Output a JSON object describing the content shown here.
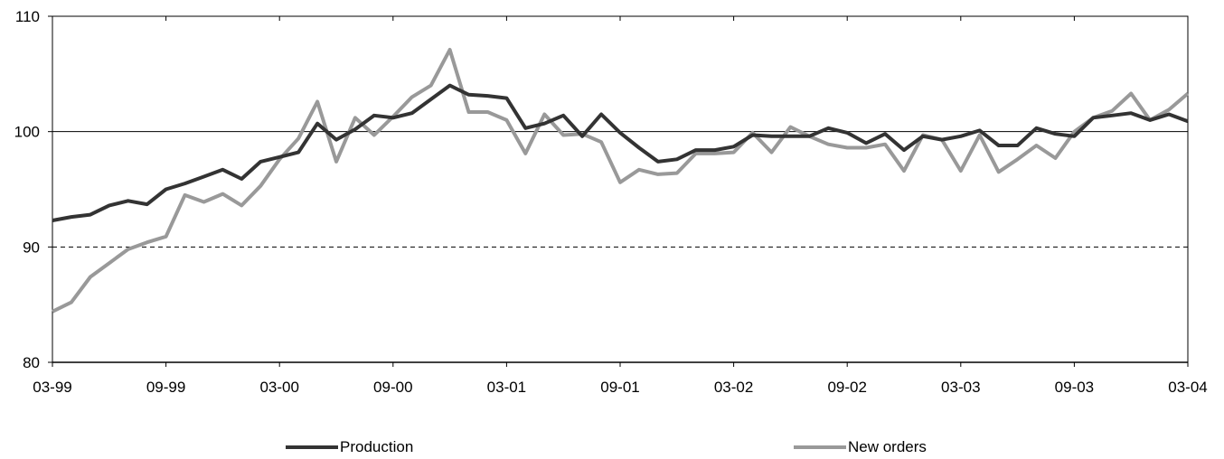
{
  "chart_data": {
    "type": "line",
    "title": "",
    "xlabel": "",
    "ylabel": "",
    "ylim": [
      80,
      110
    ],
    "yticks": [
      "80",
      "90",
      "100",
      "110"
    ],
    "xticks": [
      "03-99",
      "09-99",
      "03-00",
      "09-00",
      "03-01",
      "09-01",
      "03-02",
      "09-02",
      "03-03",
      "09-03",
      "03-04"
    ],
    "reference_lines": [
      {
        "y": 100,
        "style": "solid"
      },
      {
        "y": 90,
        "style": "dashed"
      }
    ],
    "legend_position": "bottom",
    "series": [
      {
        "name": "Production",
        "color": "#333333",
        "values": [
          92.3,
          92.6,
          92.8,
          93.6,
          94.0,
          93.7,
          95.0,
          95.5,
          96.1,
          96.7,
          95.9,
          97.4,
          97.8,
          98.2,
          100.7,
          99.3,
          100.2,
          101.4,
          101.2,
          101.6,
          102.8,
          104.0,
          103.2,
          103.1,
          102.9,
          100.3,
          100.7,
          101.4,
          99.6,
          101.5,
          99.9,
          98.6,
          97.4,
          97.6,
          98.4,
          98.4,
          98.7,
          99.7,
          99.6,
          99.6,
          99.6,
          100.3,
          99.9,
          99.0,
          99.8,
          98.4,
          99.6,
          99.3,
          99.6,
          100.1,
          98.8,
          98.8,
          100.3,
          99.8,
          99.6,
          101.2,
          101.4,
          101.6,
          101.0,
          101.5,
          100.9
        ]
      },
      {
        "name": "New orders",
        "color": "#999999",
        "values": [
          84.4,
          85.2,
          87.4,
          88.6,
          89.8,
          90.4,
          90.9,
          94.5,
          93.9,
          94.6,
          93.6,
          95.3,
          97.6,
          99.4,
          102.6,
          97.4,
          101.2,
          99.7,
          101.3,
          103.0,
          104.0,
          107.1,
          101.7,
          101.7,
          101.0,
          98.1,
          101.5,
          99.7,
          99.8,
          99.1,
          95.6,
          96.7,
          96.3,
          96.4,
          98.1,
          98.1,
          98.2,
          99.9,
          98.2,
          100.4,
          99.6,
          98.9,
          98.6,
          98.6,
          98.9,
          96.6,
          99.7,
          99.3,
          96.6,
          99.7,
          96.5,
          97.6,
          98.8,
          97.7,
          100.0,
          101.2,
          101.8,
          103.3,
          101.0,
          101.9,
          103.3
        ]
      }
    ]
  }
}
